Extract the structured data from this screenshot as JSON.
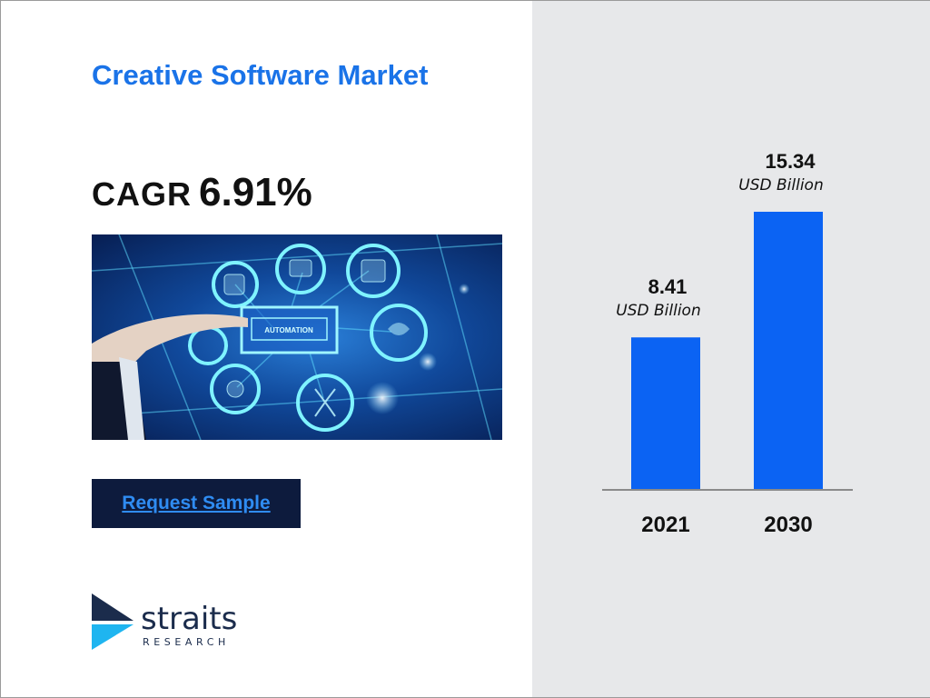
{
  "title": "Creative Software Market",
  "cagr": {
    "label": "CAGR",
    "value": "6.91%"
  },
  "hero": {
    "screen_label": "AUTOMATION"
  },
  "cta": {
    "label": "Request Sample"
  },
  "logo": {
    "word": "straits",
    "sub": "RESEARCH"
  },
  "colors": {
    "accent": "#1a73e8",
    "bar": "#0b63f3",
    "cta_bg": "#0d1b3d",
    "panel": "#e7e8ea"
  },
  "chart_data": {
    "type": "bar",
    "categories": [
      "2021",
      "2030"
    ],
    "values": [
      8.41,
      15.34
    ],
    "value_labels": [
      "8.41",
      "15.34"
    ],
    "unit_label": "USD Billion",
    "ylim": [
      0,
      20
    ],
    "grid": false,
    "legend": "none"
  }
}
